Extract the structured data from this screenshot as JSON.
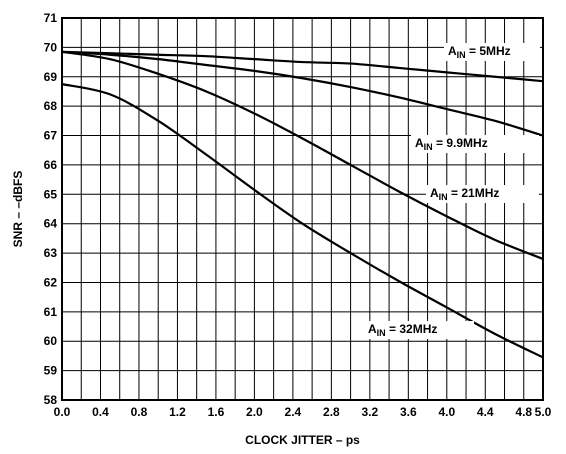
{
  "chart_data": {
    "type": "line",
    "title": "",
    "xlabel": "CLOCK JITTER – ps",
    "ylabel": "SNR – –dBFS",
    "xlim": [
      0.0,
      5.0
    ],
    "ylim": [
      58,
      71
    ],
    "x_ticks": [
      "0.0",
      "0.4",
      "0.8",
      "1.2",
      "1.6",
      "2.0",
      "2.4",
      "2.8",
      "3.2",
      "3.6",
      "4.0",
      "4.4",
      "4.8",
      "5.0"
    ],
    "y_ticks": [
      "58",
      "59",
      "60",
      "61",
      "62",
      "63",
      "64",
      "65",
      "66",
      "67",
      "68",
      "69",
      "70",
      "71"
    ],
    "grid": true,
    "legend": "inline labels",
    "series": [
      {
        "name_prefix": "A",
        "name_sub": "IN",
        "name_suffix": " = 5MHz",
        "x": [
          0.0,
          0.5,
          1.0,
          1.5,
          2.0,
          2.5,
          3.0,
          3.5,
          4.0,
          4.5,
          5.0
        ],
        "y": [
          69.85,
          69.8,
          69.75,
          69.7,
          69.6,
          69.5,
          69.45,
          69.3,
          69.15,
          69.0,
          68.85
        ]
      },
      {
        "name_prefix": "A",
        "name_sub": "IN",
        "name_suffix": " = 9.9MHz",
        "x": [
          0.0,
          0.5,
          1.0,
          1.5,
          2.0,
          2.5,
          3.0,
          3.5,
          4.0,
          4.5,
          5.0
        ],
        "y": [
          69.85,
          69.75,
          69.6,
          69.4,
          69.2,
          68.95,
          68.65,
          68.3,
          67.9,
          67.5,
          67.0
        ]
      },
      {
        "name_prefix": "A",
        "name_sub": "IN",
        "name_suffix": " = 21MHz",
        "x": [
          0.0,
          0.5,
          1.0,
          1.5,
          2.0,
          2.5,
          3.0,
          3.5,
          4.0,
          4.5,
          5.0
        ],
        "y": [
          69.85,
          69.6,
          69.1,
          68.5,
          67.75,
          66.9,
          66.0,
          65.1,
          64.25,
          63.45,
          62.8
        ]
      },
      {
        "name_prefix": "A",
        "name_sub": "IN",
        "name_suffix": " = 32MHz",
        "x": [
          0.0,
          0.5,
          1.0,
          1.5,
          2.0,
          2.5,
          3.0,
          3.5,
          4.0,
          4.5,
          5.0
        ],
        "y": [
          68.75,
          68.4,
          67.5,
          66.35,
          65.15,
          64.0,
          63.0,
          62.05,
          61.15,
          60.25,
          59.45
        ]
      }
    ]
  }
}
